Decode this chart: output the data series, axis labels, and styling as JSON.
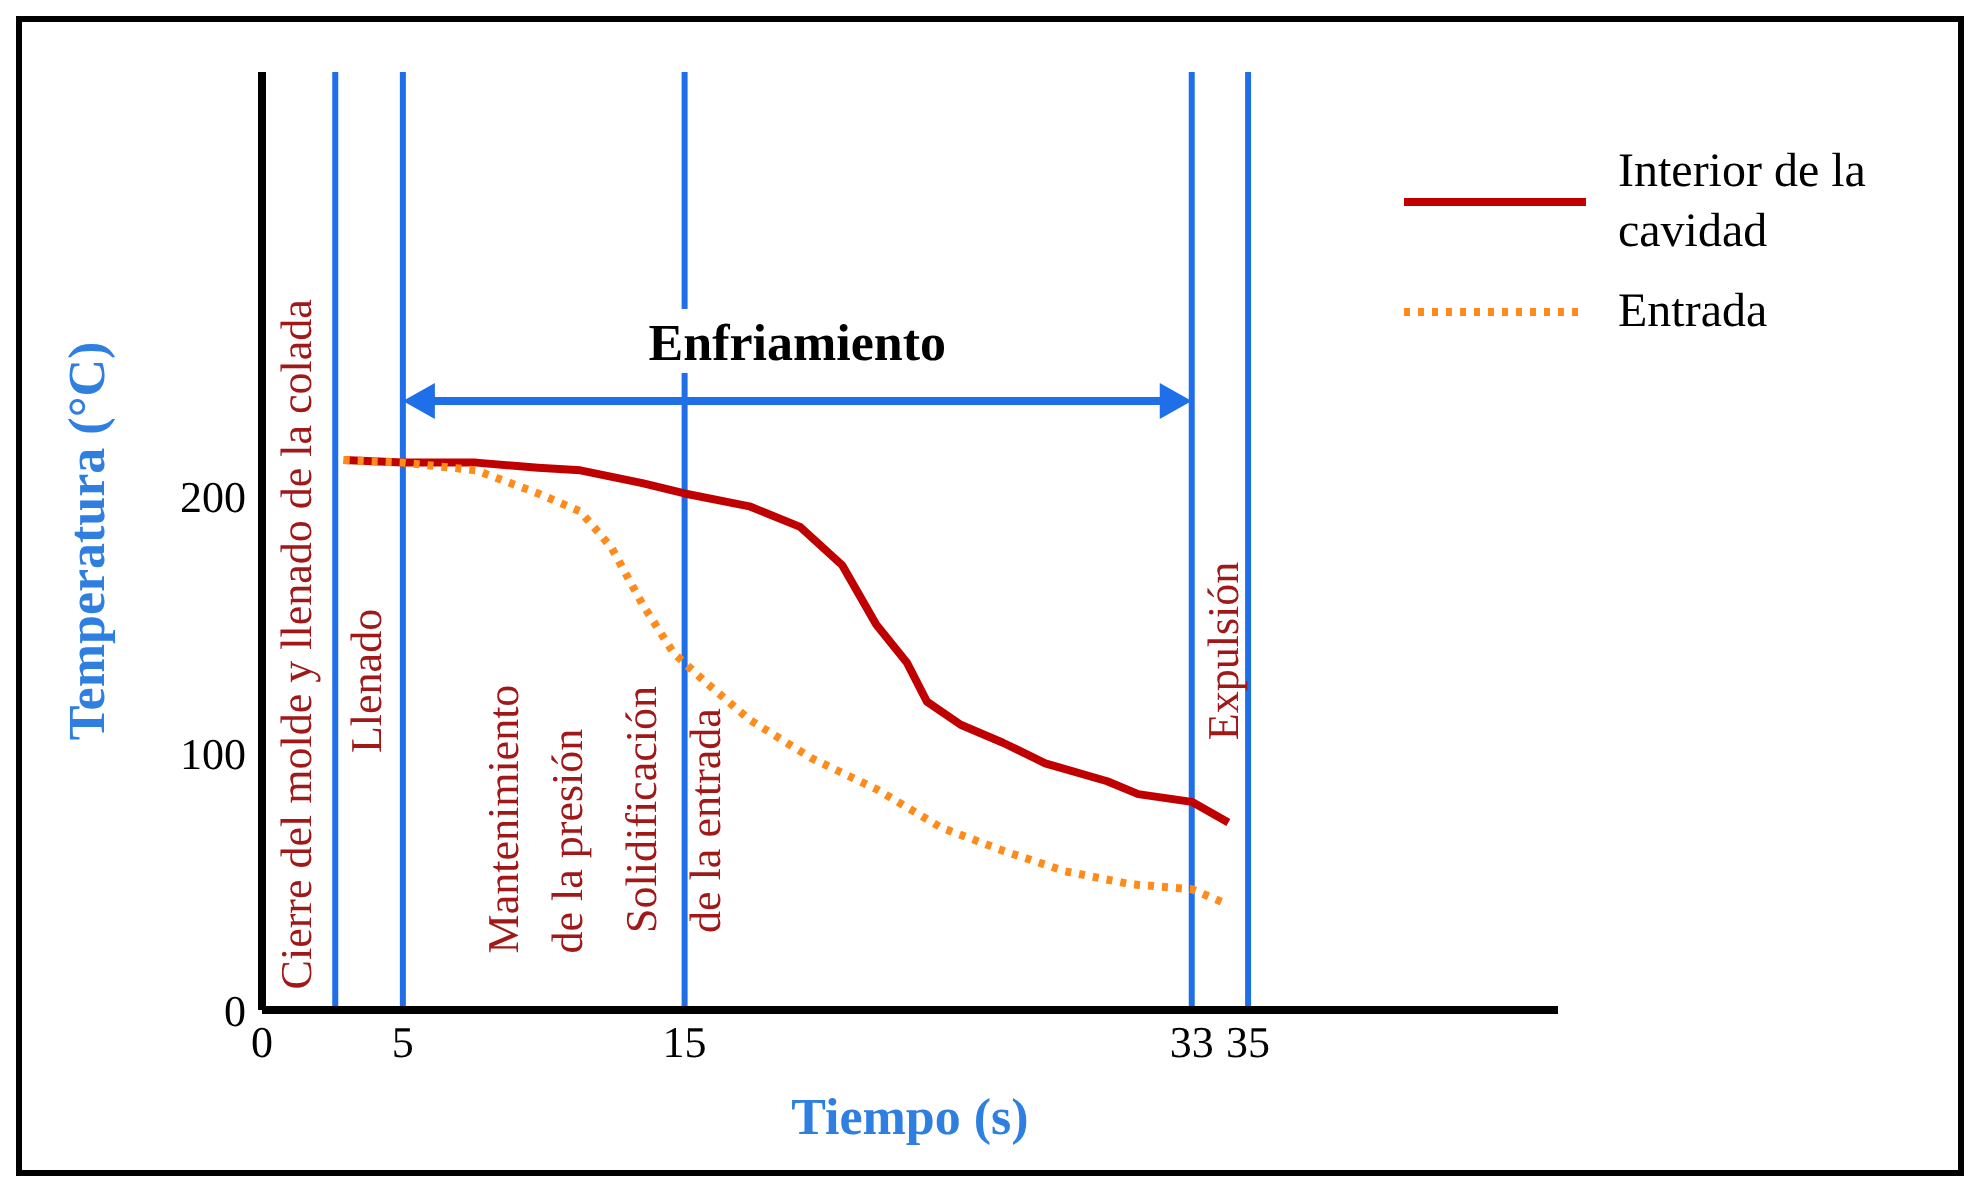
{
  "chart_data": {
    "type": "line",
    "xlabel": "Tiempo (s)",
    "ylabel": "Temperatura (°C)",
    "xlim": [
      0,
      46
    ],
    "ylim": [
      0,
      365
    ],
    "xticks": [
      0,
      5,
      15,
      33,
      35
    ],
    "yticks": [
      0,
      100,
      200
    ],
    "grid": false,
    "legend": "top right",
    "series": [
      {
        "name": "Interior de la cavidad",
        "color": "#c00000",
        "line_style": "solid",
        "x": [
          2.9,
          5,
          7.6,
          9.8,
          11.3,
          13.5,
          15,
          17.3,
          19.1,
          20.6,
          21.8,
          22.9,
          23.6,
          24.8,
          26.3,
          27.8,
          30,
          31.1,
          33,
          34.3
        ],
        "values": [
          214,
          213,
          213,
          211,
          210,
          205,
          201,
          196,
          188,
          173,
          150,
          135,
          120,
          111,
          104,
          96,
          89,
          84,
          81,
          73
        ]
      },
      {
        "name": "Entrada",
        "color": "#ff8c1a",
        "line_style": "dotted",
        "x": [
          2.9,
          5,
          7.6,
          9.8,
          11.3,
          12.4,
          13.5,
          14.6,
          15.7,
          17.3,
          19.5,
          21.8,
          24.1,
          26.3,
          28.5,
          30.8,
          33,
          34.3
        ],
        "values": [
          214,
          213,
          210,
          201,
          194,
          180,
          158,
          139,
          128,
          113,
          98,
          86,
          71,
          62,
          54,
          49,
          47,
          41
        ]
      }
    ],
    "ref_lines": [
      {
        "axis": "x",
        "value": 2.6,
        "color": "#1f6fe8"
      },
      {
        "axis": "x",
        "value": 5,
        "color": "#1f6fe8"
      },
      {
        "axis": "x",
        "value": 15,
        "color": "#1f6fe8"
      },
      {
        "axis": "x",
        "value": 33,
        "color": "#1f6fe8"
      },
      {
        "axis": "x",
        "value": 35,
        "color": "#1f6fe8"
      }
    ],
    "annotations": [
      "Cierre del molde y llenado de la colada",
      "Llenado",
      "Mantenimiento\nde la presión",
      "Solidificación\nde la entrada",
      "Expulsión",
      "Enfriamiento"
    ]
  }
}
